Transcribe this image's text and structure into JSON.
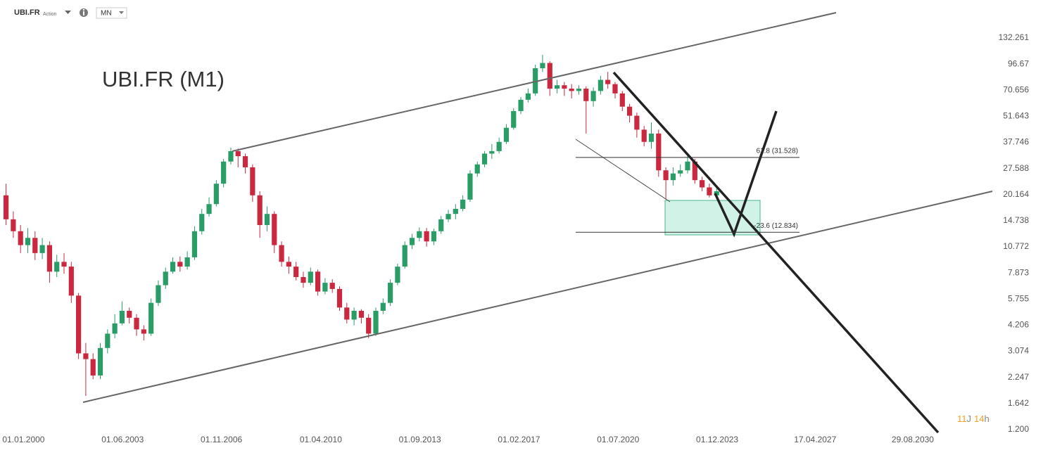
{
  "chart_data": {
    "type": "candlestick",
    "symbol": "UBI.FR",
    "instrument_kind": "Action",
    "timeframe": "MN",
    "title": "UBI.FR (M1)",
    "countdown": [
      "11",
      "J",
      "14",
      "h"
    ],
    "log_scale": true,
    "grid": false,
    "up_color": "#2a9d67",
    "down_color": "#c9283e",
    "xlim": [
      "01.12.1999",
      "01.02.2034"
    ],
    "ylim": [
      1.16,
      208.7
    ],
    "xticks": [
      "01.01.2000",
      "01.06.2003",
      "01.11.2006",
      "01.04.2010",
      "01.09.2013",
      "01.02.2017",
      "01.07.2020",
      "01.12.2023",
      "17.04.2027",
      "29.08.2030"
    ],
    "yticks": [
      132.261,
      96.67,
      70.656,
      51.643,
      37.746,
      27.588,
      20.164,
      14.738,
      10.772,
      7.873,
      5.755,
      4.206,
      3.074,
      2.247,
      1.642,
      {
        "value": 1.2,
        "label": "1.200"
      }
    ],
    "fib_levels": [
      {
        "label": "61.8 (31.528)",
        "value": 31.528
      },
      {
        "label": "-23.6 (12.834)",
        "value": 12.834
      }
    ],
    "x": [
      "01.01.2000",
      "01.04.2000",
      "01.07.2000",
      "01.10.2000",
      "01.01.2001",
      "01.04.2001",
      "01.07.2001",
      "01.10.2001",
      "01.01.2002",
      "01.04.2002",
      "01.07.2002",
      "01.10.2002",
      "01.01.2003",
      "01.04.2003",
      "01.07.2003",
      "01.10.2003",
      "01.01.2004",
      "01.04.2004",
      "01.07.2004",
      "01.10.2004",
      "01.01.2005",
      "01.04.2005",
      "01.07.2005",
      "01.10.2005",
      "01.01.2006",
      "01.04.2006",
      "01.07.2006",
      "01.10.2006",
      "01.01.2007",
      "01.04.2007",
      "01.07.2007",
      "01.10.2007",
      "01.01.2008",
      "01.04.2008",
      "01.07.2008",
      "01.10.2008",
      "01.01.2009",
      "01.04.2009",
      "01.07.2009",
      "01.10.2009",
      "01.01.2010",
      "01.04.2010",
      "01.07.2010",
      "01.10.2010",
      "01.01.2011",
      "01.04.2011",
      "01.07.2011",
      "01.10.2011",
      "01.01.2012",
      "01.04.2012",
      "01.07.2012",
      "01.10.2012",
      "01.01.2013",
      "01.04.2013",
      "01.07.2013",
      "01.10.2013",
      "01.01.2014",
      "01.04.2014",
      "01.07.2014",
      "01.10.2014",
      "01.01.2015",
      "01.04.2015",
      "01.07.2015",
      "01.10.2015",
      "01.01.2016",
      "01.04.2016",
      "01.07.2016",
      "01.10.2016",
      "01.01.2017",
      "01.04.2017",
      "01.07.2017",
      "01.10.2017",
      "01.01.2018",
      "01.04.2018",
      "01.07.2018",
      "01.10.2018",
      "01.01.2019",
      "01.04.2019",
      "01.07.2019",
      "01.10.2019",
      "01.01.2020",
      "01.04.2020",
      "01.07.2020",
      "01.10.2020",
      "01.01.2021",
      "01.04.2021",
      "01.07.2021",
      "01.10.2021",
      "01.01.2022",
      "01.04.2022",
      "01.07.2022",
      "01.10.2022",
      "01.01.2023",
      "01.04.2023",
      "01.07.2023",
      "01.10.2023",
      "01.01.2024",
      "01.04.2024",
      "01.07.2024"
    ],
    "open": [
      20,
      15,
      13,
      11,
      12,
      10,
      11,
      8,
      9,
      8.5,
      6,
      3,
      2.8,
      2.3,
      3.2,
      3.8,
      4.3,
      5.0,
      4.6,
      4.0,
      3.8,
      5.5,
      6.8,
      8.0,
      9.0,
      8.5,
      9.5,
      13,
      16,
      18,
      23,
      30,
      34,
      32,
      28,
      20,
      14,
      16,
      11,
      9,
      8.5,
      7.5,
      7.0,
      8.0,
      6.3,
      7.0,
      6.5,
      5.2,
      4.5,
      5.0,
      4.6,
      3.8,
      5.0,
      5.5,
      7.0,
      8.5,
      11,
      12,
      13,
      11.5,
      13,
      15,
      16,
      17,
      19,
      26,
      29,
      33,
      34,
      38,
      45,
      55,
      63,
      68,
      92,
      98,
      72,
      75,
      72,
      70,
      72,
      62,
      70,
      80,
      76,
      68,
      58,
      52,
      44,
      38,
      42,
      27,
      24,
      26,
      27,
      30,
      24,
      22,
      20
    ],
    "high": [
      23,
      16.5,
      14,
      13.5,
      13,
      12,
      11.5,
      9.8,
      10,
      9,
      6.2,
      3.4,
      3.0,
      3.4,
      4.0,
      4.8,
      5.6,
      5.2,
      4.8,
      4.2,
      5.8,
      7.2,
      8.4,
      9.5,
      9.6,
      10.2,
      13.8,
      17,
      19.5,
      24,
      31,
      35.5,
      35,
      33,
      29,
      21,
      17.5,
      16.5,
      11.5,
      9.6,
      9,
      8,
      8.4,
      8.2,
      7.4,
      7.3,
      6.7,
      5.5,
      5.2,
      5.1,
      4.8,
      5.2,
      5.8,
      7.3,
      8.8,
      11.5,
      12.6,
      13.6,
      13.5,
      13.4,
      15.6,
      16.8,
      18,
      20,
      27,
      30,
      34,
      37,
      40,
      47,
      57,
      65,
      72,
      96,
      108,
      100,
      80,
      78,
      76,
      75,
      74,
      73,
      84,
      88,
      78,
      70,
      60,
      54,
      46,
      48,
      44,
      28,
      28,
      29,
      32,
      31,
      25,
      23,
      22
    ],
    "low": [
      14,
      12,
      10,
      10,
      9.2,
      9.3,
      7,
      7.5,
      7.8,
      5.5,
      2.8,
      1.8,
      2.2,
      2.2,
      3.0,
      3.6,
      4.2,
      4.3,
      3.7,
      3.5,
      3.7,
      5.3,
      6.5,
      7.8,
      8.0,
      8.2,
      9.2,
      12.5,
      15.5,
      17.5,
      22,
      29,
      28,
      26,
      18.5,
      12,
      13,
      10,
      8.5,
      7.8,
      7.2,
      6.6,
      6.8,
      6.0,
      6.1,
      6.2,
      5.0,
      4.3,
      4.2,
      4.3,
      3.6,
      3.7,
      4.8,
      5.3,
      6.8,
      8.3,
      10.5,
      11.5,
      10.8,
      11,
      12.6,
      14.5,
      15,
      16.5,
      18.5,
      25,
      28,
      31,
      33,
      37,
      44,
      53,
      61,
      66,
      88,
      66,
      68,
      66,
      64,
      67,
      42,
      58,
      67,
      72,
      64,
      55,
      48,
      40,
      36,
      35,
      25,
      19,
      22.5,
      25,
      26,
      23,
      21,
      19.5,
      19.5
    ],
    "close": [
      15,
      13,
      11,
      12,
      10,
      11,
      8,
      9,
      8.5,
      6,
      3,
      2.8,
      2.3,
      3.2,
      3.8,
      4.3,
      5.0,
      4.6,
      4.0,
      3.8,
      5.5,
      6.8,
      8.0,
      9.0,
      8.5,
      9.5,
      13,
      16,
      18,
      23,
      30,
      34,
      32,
      28,
      20,
      14,
      16,
      11,
      9,
      8.5,
      7.5,
      7.0,
      8.0,
      6.3,
      7.0,
      6.5,
      5.2,
      4.5,
      5.0,
      4.6,
      3.8,
      5.0,
      5.5,
      7.0,
      8.5,
      11,
      12,
      13,
      11.5,
      13,
      15,
      16,
      17,
      19,
      26,
      29,
      33,
      34,
      38,
      45,
      55,
      63,
      68,
      92,
      98,
      72,
      75,
      72,
      70,
      72,
      62,
      70,
      80,
      76,
      68,
      58,
      52,
      44,
      38,
      42,
      27,
      24,
      26,
      27,
      30,
      24,
      22,
      20,
      21
    ]
  }
}
